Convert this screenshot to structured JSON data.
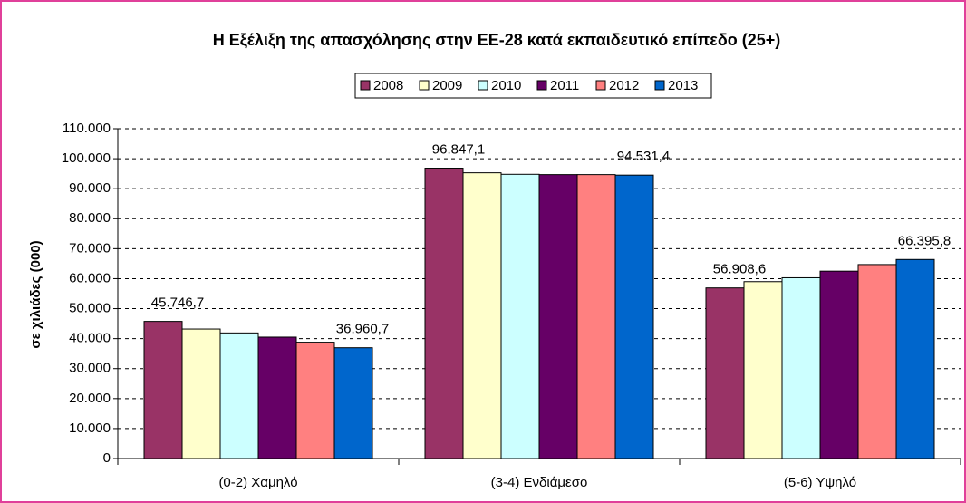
{
  "chart_data": {
    "type": "bar",
    "title": "Η Εξέλιξη της απασχόλησης στην ΕΕ-28 κατά εκπαιδευτικό επίπεδο (25+)",
    "y_label": "σε χιλιάδες (000)",
    "categories": [
      "(0-2) Χαμηλό",
      "(3-4) Ενδιάμεσο",
      "(5-6) Υψηλό"
    ],
    "series": [
      {
        "name": "2008",
        "color": "#993366",
        "values": [
          45746.7,
          96847.1,
          56908.6
        ],
        "value_labels": [
          "45.746,7",
          "96.847,1",
          "56.908,6"
        ]
      },
      {
        "name": "2009",
        "color": "#ffffcc",
        "values": [
          43200,
          95300,
          59000
        ]
      },
      {
        "name": "2010",
        "color": "#ccffff",
        "values": [
          41900,
          94800,
          60300
        ]
      },
      {
        "name": "2011",
        "color": "#660066",
        "values": [
          40500,
          94700,
          62500
        ]
      },
      {
        "name": "2012",
        "color": "#ff8080",
        "values": [
          38800,
          94700,
          64700
        ]
      },
      {
        "name": "2013",
        "color": "#0066cc",
        "values": [
          36960.7,
          94531.4,
          66395.8
        ],
        "value_labels": [
          "36.960,7",
          "94.531,4",
          "66.395,8"
        ]
      }
    ],
    "ylim": [
      0,
      110000
    ],
    "yticks": [
      0,
      {
        "value": 10000,
        "label": "10.000"
      },
      {
        "value": 20000,
        "label": "20.000"
      },
      {
        "value": 30000,
        "label": "30.000"
      },
      {
        "value": 40000,
        "label": "40.000"
      },
      {
        "value": 50000,
        "label": "50.000"
      },
      {
        "value": 60000,
        "label": "60.000"
      },
      {
        "value": 70000,
        "label": "70.000"
      },
      {
        "value": 80000,
        "label": "80.000"
      },
      {
        "value": 90000,
        "label": "90.000"
      },
      {
        "value": 100000,
        "label": "100.000"
      },
      {
        "value": 110000,
        "label": "110.000"
      }
    ],
    "grid": true,
    "legend": "top"
  }
}
